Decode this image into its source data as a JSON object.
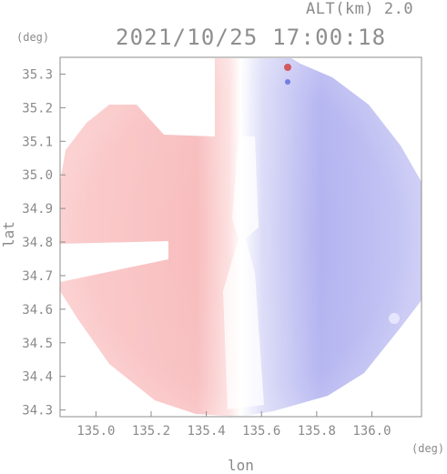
{
  "header": {
    "altitude": "ALT(km) 2.0",
    "datetime": "2021/10/25 17:00:18"
  },
  "axes": {
    "x_unit": "(deg)",
    "y_unit": "(deg)",
    "x_label": "lon",
    "y_label": "lat",
    "x_range": [
      134.87,
      136.18
    ],
    "y_range": [
      34.28,
      35.35
    ],
    "x_ticks": [
      "135.0",
      "135.2",
      "135.4",
      "135.6",
      "135.8",
      "136.0"
    ],
    "y_ticks": [
      "35.3",
      "35.2",
      "35.1",
      "35.0",
      "34.9",
      "34.8",
      "34.7",
      "34.6",
      "34.5",
      "34.4",
      "34.3"
    ]
  },
  "radar": {
    "center": {
      "lon": 135.52,
      "lat": 34.81
    },
    "colors": {
      "approaching": "#f7b9bb",
      "receding": "#a6a7f0",
      "near_zero": "#ffffff",
      "frame": "#8c8c8c"
    }
  }
}
